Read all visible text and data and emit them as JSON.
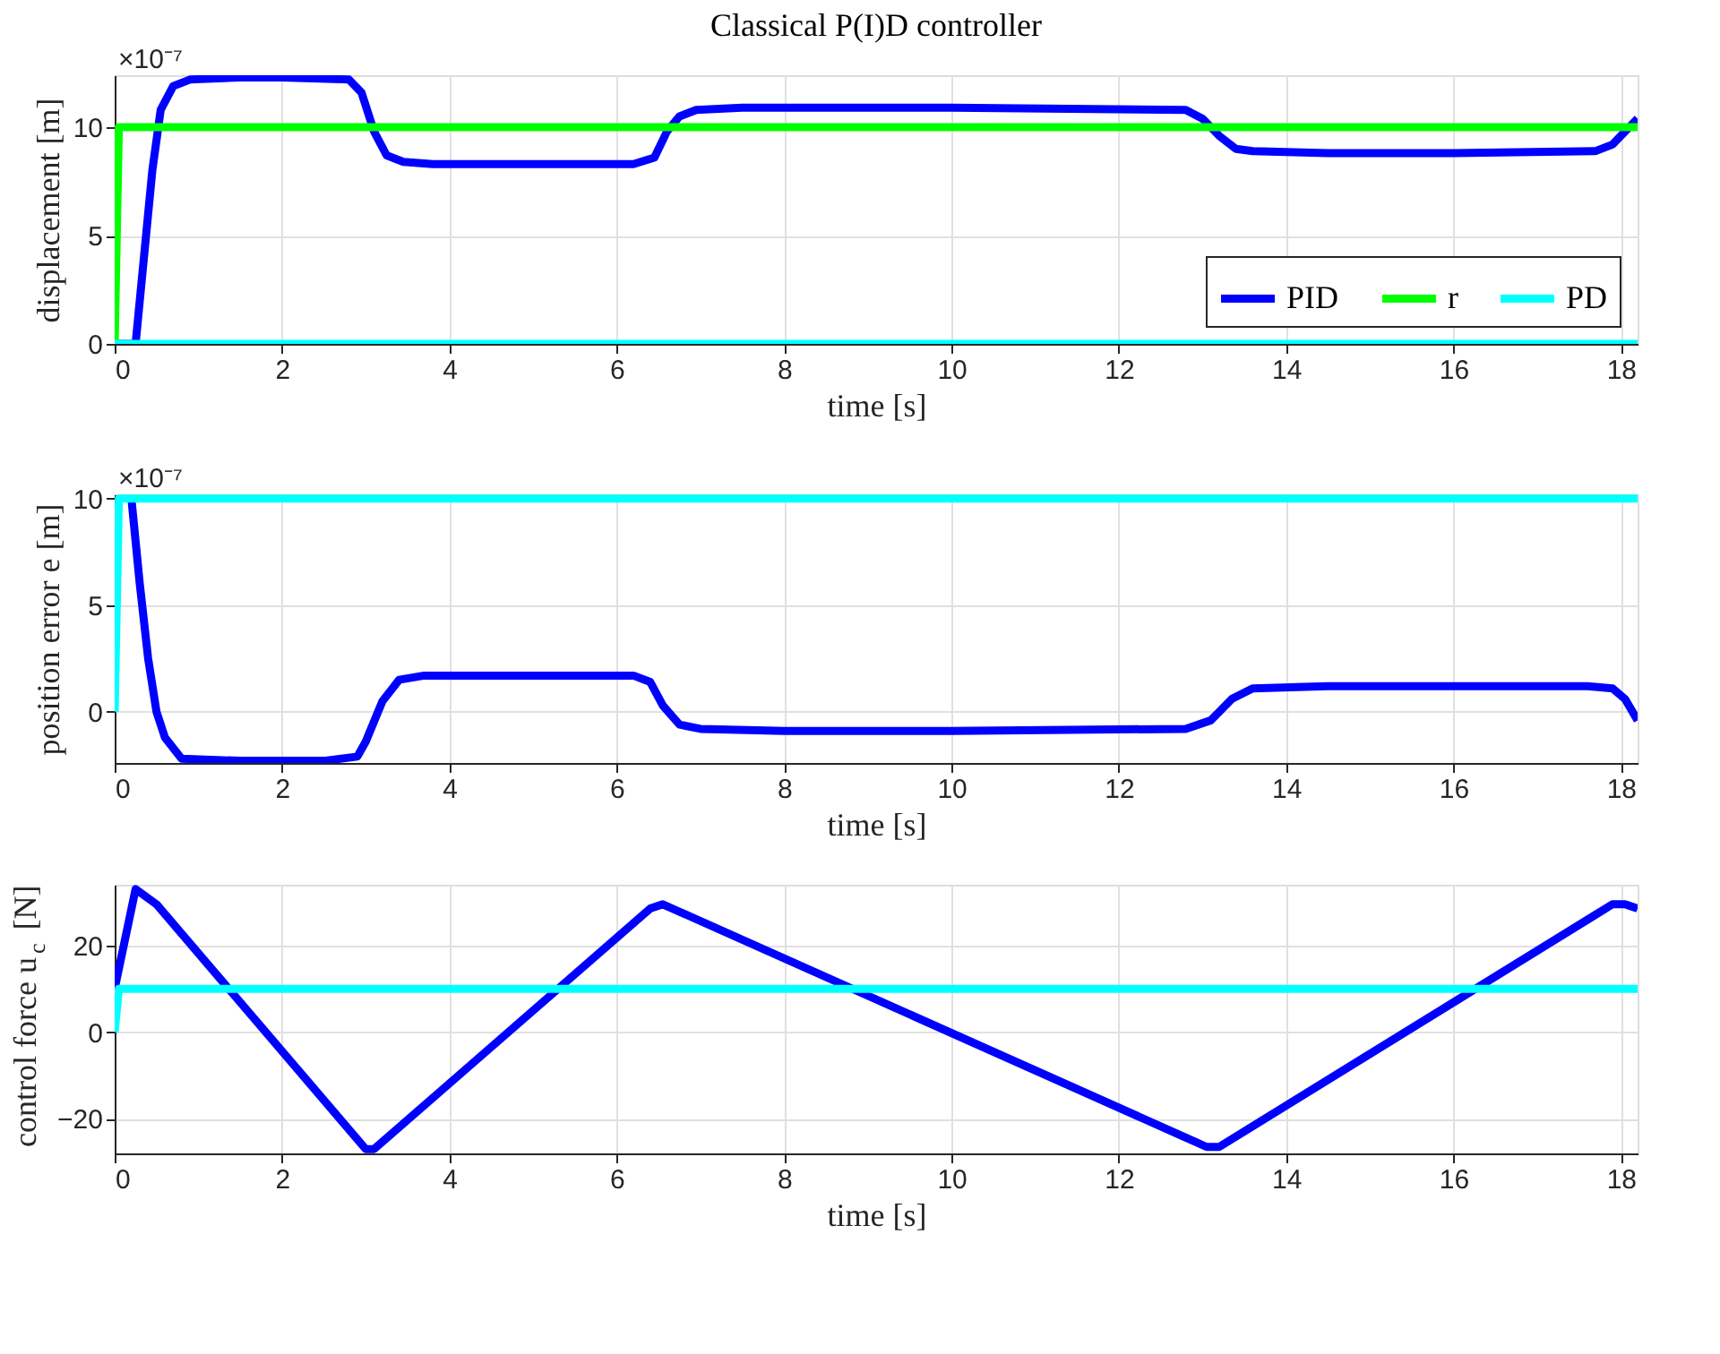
{
  "chart_data": [
    {
      "type": "line",
      "title": "Classical P(I)D controller",
      "xlabel": "time [s]",
      "ylabel": "displacement [m]",
      "annotations": [
        "×10⁻⁷"
      ],
      "xlim": [
        0,
        18.2
      ],
      "xticks": [
        0,
        2,
        4,
        6,
        8,
        10,
        12,
        14,
        16,
        18
      ],
      "ylim": [
        0,
        12.4
      ],
      "yticks": [
        0,
        5,
        10
      ],
      "grid": true,
      "legend": "bottom right",
      "line_style": "solid",
      "marker": "none",
      "series": [
        {
          "name": "PID",
          "color": "#0000ff",
          "x": [
            0,
            0.25,
            0.35,
            0.45,
            0.55,
            0.7,
            0.9,
            1.5,
            2.0,
            2.8,
            2.95,
            3.1,
            3.25,
            3.45,
            3.8,
            5,
            6.2,
            6.45,
            6.6,
            6.75,
            6.95,
            7.5,
            10,
            12.8,
            13.0,
            13.2,
            13.4,
            13.6,
            14.5,
            16,
            17.7,
            17.9,
            18.05,
            18.2
          ],
          "values": [
            0,
            0,
            4,
            8,
            10.8,
            11.9,
            12.2,
            12.3,
            12.3,
            12.2,
            11.6,
            9.8,
            8.7,
            8.4,
            8.3,
            8.3,
            8.3,
            8.6,
            9.8,
            10.5,
            10.8,
            10.9,
            10.9,
            10.8,
            10.4,
            9.6,
            9.0,
            8.9,
            8.8,
            8.8,
            8.9,
            9.2,
            9.8,
            10.4
          ]
        },
        {
          "name": "r",
          "color": "#00ff00",
          "x": [
            0,
            0.05,
            18.2
          ],
          "values": [
            0,
            10,
            10
          ]
        },
        {
          "name": "PD",
          "color": "#00ffff",
          "x": [
            0,
            18.2
          ],
          "values": [
            0,
            0
          ]
        }
      ]
    },
    {
      "type": "line",
      "xlabel": "time [s]",
      "ylabel": "position error e [m]",
      "annotations": [
        "×10⁻⁷"
      ],
      "xlim": [
        0,
        18.2
      ],
      "xticks": [
        0,
        2,
        4,
        6,
        8,
        10,
        12,
        14,
        16,
        18
      ],
      "ylim": [
        -2.4,
        10.2
      ],
      "yticks": [
        0,
        5,
        10
      ],
      "grid": true,
      "line_style": "solid",
      "marker": "none",
      "series": [
        {
          "color": "#0000ff",
          "x": [
            0.2,
            0.3,
            0.4,
            0.5,
            0.6,
            0.8,
            1.5,
            2.5,
            2.9,
            3.0,
            3.2,
            3.4,
            3.7,
            5,
            6.2,
            6.4,
            6.55,
            6.75,
            7.0,
            8,
            10,
            12.8,
            13.1,
            13.35,
            13.6,
            14.5,
            16,
            17.6,
            17.9,
            18.05,
            18.2
          ],
          "values": [
            10,
            6,
            2.5,
            0,
            -1.2,
            -2.2,
            -2.3,
            -2.3,
            -2.1,
            -1.4,
            0.5,
            1.5,
            1.7,
            1.7,
            1.7,
            1.4,
            0.3,
            -0.6,
            -0.8,
            -0.9,
            -0.9,
            -0.8,
            -0.4,
            0.6,
            1.1,
            1.2,
            1.2,
            1.2,
            1.1,
            0.6,
            -0.4
          ]
        },
        {
          "color": "#00ffff",
          "x": [
            0,
            0.05,
            18.2
          ],
          "values": [
            0,
            10,
            10
          ]
        }
      ]
    },
    {
      "type": "line",
      "xlabel": "time [s]",
      "ylabel": "control force u$_{c}$ [N]",
      "xlim": [
        0,
        18.2
      ],
      "xticks": [
        0,
        2,
        4,
        6,
        8,
        10,
        12,
        14,
        16,
        18
      ],
      "ylim": [
        -28,
        34
      ],
      "yticks": [
        -20,
        0,
        20
      ],
      "grid": true,
      "line_style": "solid",
      "marker": "none",
      "series": [
        {
          "color": "#0000ff",
          "x": [
            0,
            0.25,
            0.5,
            3.0,
            3.1,
            6.4,
            6.55,
            13.05,
            13.2,
            17.9,
            18.05,
            18.2
          ],
          "values": [
            10,
            33,
            29.5,
            -27,
            -27,
            28.5,
            29.5,
            -26.5,
            -26.5,
            29.5,
            29.5,
            28.5
          ]
        },
        {
          "color": "#00ffff",
          "x": [
            0,
            0.05,
            18.2
          ],
          "values": [
            0,
            10,
            10
          ]
        }
      ]
    }
  ]
}
